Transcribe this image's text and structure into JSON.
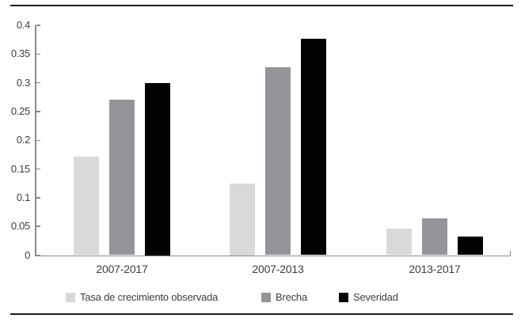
{
  "chart_data": {
    "type": "bar",
    "title": "",
    "xlabel": "",
    "ylabel": "",
    "categories": [
      "2007-2017",
      "2007-2013",
      "2013-2017"
    ],
    "series": [
      {
        "name": "Tasa de crecimiento observada",
        "color": "#d8d9db",
        "values": [
          0.171,
          0.125,
          0.046
        ]
      },
      {
        "name": "Brecha",
        "color": "#939598",
        "values": [
          0.271,
          0.327,
          0.064
        ]
      },
      {
        "name": "Severidad",
        "color": "#020202",
        "values": [
          0.3,
          0.376,
          0.032
        ]
      }
    ],
    "ylim": [
      0,
      0.4
    ],
    "ytick_step": 0.05,
    "yticks": [
      "0.4",
      "0.35",
      "0.3",
      "0.25",
      "0.2",
      "0.15",
      "0.1",
      "0.05",
      "0"
    ],
    "grid": false,
    "legend_position": "bottom",
    "axis_color": "#8a8a8a",
    "text_color": "#3d3d3d",
    "frame_rule_color": "#1e1e1e"
  }
}
